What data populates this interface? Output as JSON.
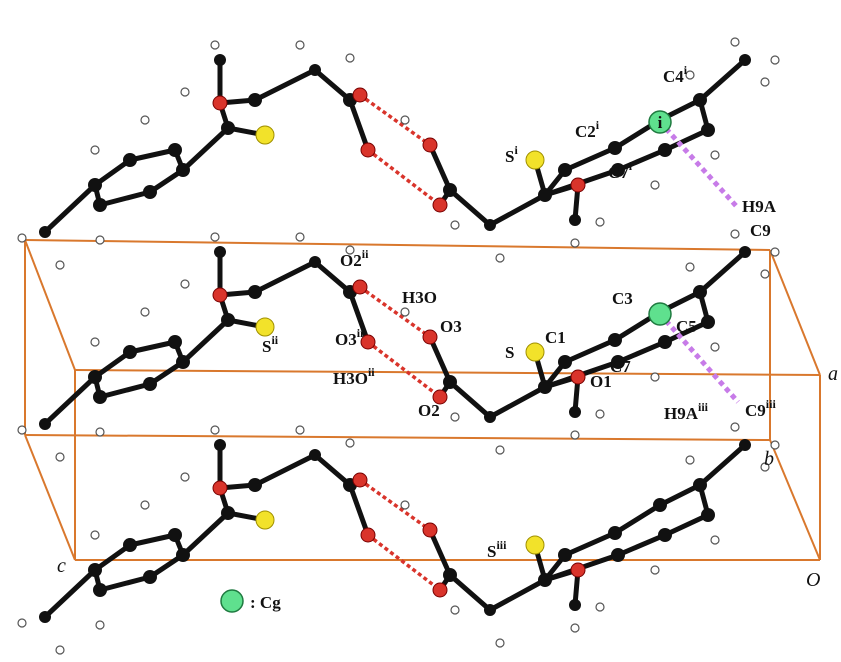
{
  "labels": [
    {
      "text": "C4",
      "sup": "i"
    },
    {
      "text": "i"
    },
    {
      "text": "C2",
      "sup": "i"
    },
    {
      "text": "S",
      "sup": "i"
    },
    {
      "text": "C7",
      "sup": "i"
    },
    {
      "text": "H9A"
    },
    {
      "text": "C9"
    },
    {
      "text": "O2",
      "sup": "ii"
    },
    {
      "text": "H3O"
    },
    {
      "text": "O3"
    },
    {
      "text": "O3",
      "sup": "ii"
    },
    {
      "text": "S",
      "sup": "ii"
    },
    {
      "text": "H3O",
      "sup": "ii"
    },
    {
      "text": "O2"
    },
    {
      "text": "C3"
    },
    {
      "text": "C5"
    },
    {
      "text": "S"
    },
    {
      "text": "C1"
    },
    {
      "text": "C7"
    },
    {
      "text": "O1"
    },
    {
      "text": "a"
    },
    {
      "text": "H9A",
      "sup": "iii"
    },
    {
      "text": "C9",
      "sup": "iii"
    },
    {
      "text": "b"
    },
    {
      "text": "S",
      "sup": "iii"
    },
    {
      "text": "c"
    },
    {
      "text": "O"
    },
    {
      "text": ": Cg"
    }
  ]
}
